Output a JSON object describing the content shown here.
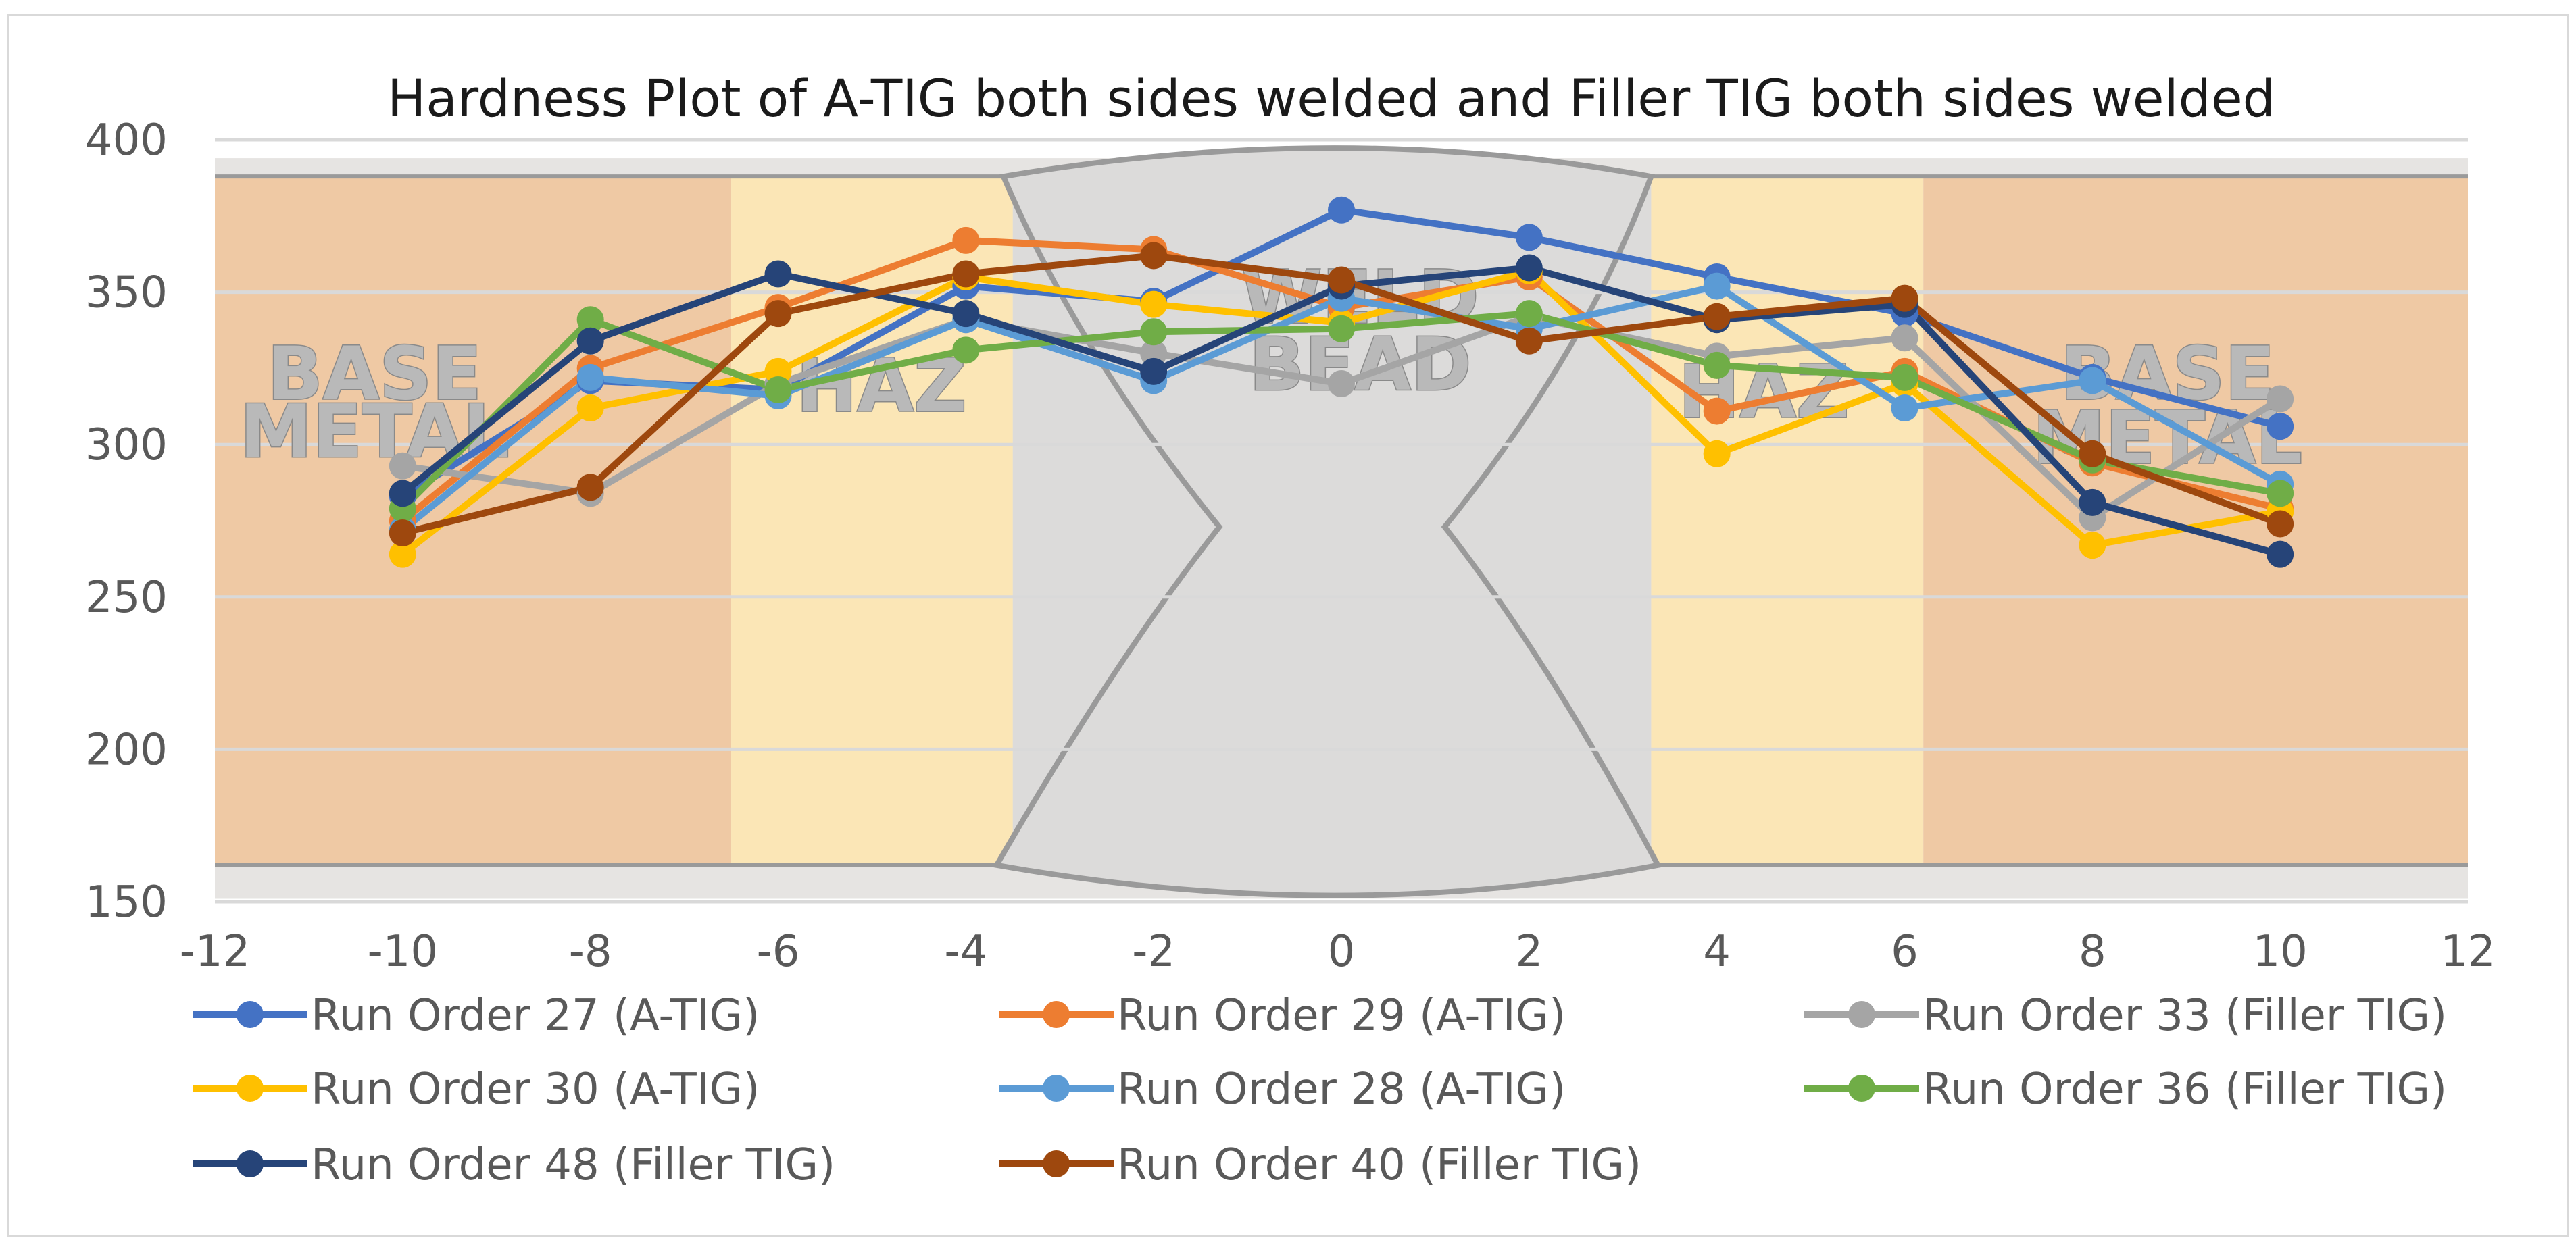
{
  "chart_data": {
    "type": "line",
    "title": "Hardness Plot of A-TIG both sides welded and Filler TIG both sides welded",
    "xlabel": "",
    "ylabel": "",
    "xlim": [
      -12,
      12
    ],
    "ylim": [
      150,
      400
    ],
    "x_ticks": [
      -12,
      -10,
      -8,
      -6,
      -4,
      -2,
      0,
      2,
      4,
      6,
      8,
      10,
      12
    ],
    "y_ticks": [
      150,
      200,
      250,
      300,
      350,
      400
    ],
    "x_tick_labels": [
      "-12",
      "-10",
      "-8",
      "-6",
      "-4",
      "-2",
      "0",
      "2",
      "4",
      "6",
      "8",
      "10",
      "12"
    ],
    "y_tick_labels": [
      "150",
      "200",
      "250",
      "300",
      "350",
      "400"
    ],
    "grid": "horizontal",
    "legend_position": "bottom",
    "x": [
      -10,
      -8,
      -6,
      -4,
      -2,
      0,
      2,
      4,
      6,
      8,
      10
    ],
    "background_zones": [
      {
        "label_lines": [
          "BASE",
          "METAL"
        ],
        "x_range": [
          -12,
          -6.5
        ],
        "color": "#efc9a4"
      },
      {
        "label_lines": [
          "HAZ"
        ],
        "x_range": [
          -6.5,
          -3.5
        ],
        "color": "#fbe6b6"
      },
      {
        "label_lines": [
          "WELD",
          "BEAD"
        ],
        "x_range": [
          -3.5,
          3.3
        ],
        "color": "#dcdbda"
      },
      {
        "label_lines": [
          "HAZ"
        ],
        "x_range": [
          3.3,
          6.2
        ],
        "color": "#fbe6b6"
      },
      {
        "label_lines": [
          "BASE",
          "METAL"
        ],
        "x_range": [
          6.2,
          12
        ],
        "color": "#efc9a4"
      }
    ],
    "series": [
      {
        "name": "Run Order 27 (A-TIG)",
        "color": "#4472c4",
        "values": [
          283,
          321,
          318,
          352,
          347,
          377,
          368,
          355,
          343,
          322,
          306
        ]
      },
      {
        "name": "Run Order 29 (A-TIG)",
        "color": "#ed7d31",
        "values": [
          275,
          325,
          345,
          367,
          364,
          345,
          355,
          311,
          324,
          294,
          279
        ]
      },
      {
        "name": "Run Order 33 (Filler TIG)",
        "color": "#a5a5a5",
        "values": [
          293,
          284,
          320,
          341,
          330,
          320,
          342,
          329,
          335,
          276,
          315
        ]
      },
      {
        "name": "Run Order 30 (A-TIG)",
        "color": "#ffc000",
        "values": [
          264,
          312,
          324,
          355,
          346,
          340,
          357,
          297,
          320,
          267,
          278
        ]
      },
      {
        "name": "Run Order 28 (A-TIG)",
        "color": "#5b9bd5",
        "values": [
          272,
          322,
          316,
          341,
          321,
          348,
          338,
          352,
          312,
          321,
          287
        ]
      },
      {
        "name": "Run Order 36 (Filler TIG)",
        "color": "#70ad47",
        "values": [
          279,
          341,
          318,
          331,
          337,
          338,
          343,
          326,
          322,
          295,
          284
        ]
      },
      {
        "name": "Run Order 48 (Filler TIG)",
        "color": "#264478",
        "values": [
          284,
          334,
          356,
          343,
          324,
          352,
          358,
          341,
          346,
          281,
          264
        ]
      },
      {
        "name": "Run Order 40 (Filler TIG)",
        "color": "#9e480e",
        "values": [
          271,
          286,
          343,
          356,
          362,
          354,
          334,
          342,
          348,
          297,
          274
        ]
      }
    ]
  }
}
